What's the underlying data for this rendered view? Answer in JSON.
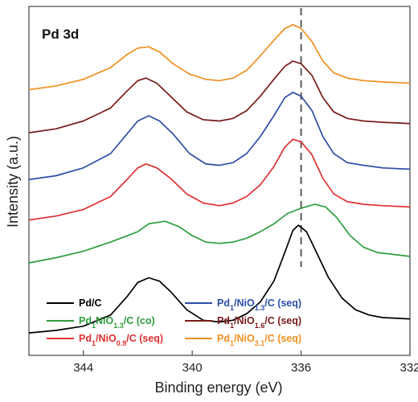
{
  "chart_data": {
    "type": "line",
    "title": "",
    "annotation": "Pd 3d",
    "xlabel": "Binding energy (eV)",
    "ylabel": "Intensity (a.u.)",
    "xlim": [
      346,
      332
    ],
    "x_reversed": true,
    "xticks": [
      344,
      340,
      336,
      332
    ],
    "y_ticks_shown": false,
    "grid": false,
    "legend_placement": "bottom-left",
    "reference_line": {
      "x": 336.0,
      "style": "dashed",
      "color": "#666666"
    },
    "series": [
      {
        "name": "Pd/C",
        "legend_html": "Pd/C",
        "color": "#000000",
        "points": [
          [
            346,
            0.86
          ],
          [
            345,
            0.96
          ],
          [
            344,
            1.12
          ],
          [
            343,
            1.55
          ],
          [
            342.4,
            2.25
          ],
          [
            342,
            2.8
          ],
          [
            341.6,
            2.98
          ],
          [
            341.2,
            2.85
          ],
          [
            340.8,
            2.45
          ],
          [
            340.2,
            1.75
          ],
          [
            339.6,
            1.35
          ],
          [
            339,
            1.28
          ],
          [
            338.5,
            1.35
          ],
          [
            338,
            1.6
          ],
          [
            337.5,
            2.05
          ],
          [
            337,
            2.85
          ],
          [
            336.6,
            3.95
          ],
          [
            336.3,
            4.8
          ],
          [
            336.1,
            5.0
          ],
          [
            335.8,
            4.75
          ],
          [
            335.5,
            4.1
          ],
          [
            335,
            3.0
          ],
          [
            334.5,
            2.2
          ],
          [
            334,
            1.75
          ],
          [
            333.5,
            1.55
          ],
          [
            333,
            1.45
          ],
          [
            332,
            1.4
          ]
        ]
      },
      {
        "name": "Pd1NiO1.3/C (co)",
        "legend_html": "Pd<tspan baseline-shift='sub' font-size='9'>1</tspan>NiO<tspan baseline-shift='sub' font-size='9'>1.3</tspan>/C (co)",
        "color": "#2e9e3e",
        "points": [
          [
            346,
            3.55
          ],
          [
            345,
            3.75
          ],
          [
            344,
            4.0
          ],
          [
            343,
            4.35
          ],
          [
            342,
            4.75
          ],
          [
            341.6,
            5.05
          ],
          [
            341,
            5.15
          ],
          [
            340.5,
            4.95
          ],
          [
            340,
            4.6
          ],
          [
            339.5,
            4.35
          ],
          [
            339,
            4.3
          ],
          [
            338.5,
            4.35
          ],
          [
            338,
            4.5
          ],
          [
            337.5,
            4.75
          ],
          [
            337,
            5.05
          ],
          [
            336.5,
            5.45
          ],
          [
            336,
            5.65
          ],
          [
            335.5,
            5.8
          ],
          [
            335.1,
            5.7
          ],
          [
            334.7,
            5.3
          ],
          [
            334.2,
            4.6
          ],
          [
            333.7,
            4.15
          ],
          [
            333.2,
            3.95
          ],
          [
            332,
            3.8
          ]
        ]
      },
      {
        "name": "Pd1/NiO0.9/C (seq)",
        "legend_html": "Pd<tspan baseline-shift='sub' font-size='9'>1</tspan>/NiO<tspan baseline-shift='sub' font-size='9'>0.9</tspan>/C (seq)",
        "color": "#e03030",
        "points": [
          [
            346,
            5.2
          ],
          [
            345,
            5.35
          ],
          [
            344,
            5.6
          ],
          [
            343,
            6.1
          ],
          [
            342.4,
            6.75
          ],
          [
            342,
            7.2
          ],
          [
            341.7,
            7.35
          ],
          [
            341.3,
            7.2
          ],
          [
            340.8,
            6.8
          ],
          [
            340.2,
            6.2
          ],
          [
            339.6,
            5.85
          ],
          [
            339,
            5.75
          ],
          [
            338.5,
            5.85
          ],
          [
            338,
            6.1
          ],
          [
            337.5,
            6.55
          ],
          [
            337,
            7.25
          ],
          [
            336.6,
            8.0
          ],
          [
            336.3,
            8.3
          ],
          [
            336,
            8.2
          ],
          [
            335.6,
            7.7
          ],
          [
            335.2,
            6.8
          ],
          [
            334.8,
            6.2
          ],
          [
            334.3,
            5.9
          ],
          [
            333.7,
            5.8
          ],
          [
            333,
            5.75
          ],
          [
            332,
            5.7
          ]
        ]
      },
      {
        "name": "Pd1/NiO1.3/C (seq)",
        "legend_html": "Pd<tspan baseline-shift='sub' font-size='9'>1</tspan>/NiO<tspan baseline-shift='sub' font-size='9'>1.3</tspan>/C (seq)",
        "color": "#2c4ea8",
        "points": [
          [
            346,
            6.75
          ],
          [
            345,
            6.9
          ],
          [
            344,
            7.2
          ],
          [
            343,
            7.75
          ],
          [
            342.4,
            8.5
          ],
          [
            342,
            9.0
          ],
          [
            341.6,
            9.2
          ],
          [
            341.2,
            9.0
          ],
          [
            340.7,
            8.5
          ],
          [
            340.1,
            7.75
          ],
          [
            339.5,
            7.35
          ],
          [
            339,
            7.3
          ],
          [
            338.5,
            7.4
          ],
          [
            338,
            7.75
          ],
          [
            337.5,
            8.4
          ],
          [
            337,
            9.2
          ],
          [
            336.6,
            9.9
          ],
          [
            336.3,
            10.1
          ],
          [
            336,
            9.95
          ],
          [
            335.6,
            9.4
          ],
          [
            335.2,
            8.4
          ],
          [
            334.8,
            7.75
          ],
          [
            334.3,
            7.4
          ],
          [
            333.7,
            7.3
          ],
          [
            333,
            7.2
          ],
          [
            332,
            7.15
          ]
        ]
      },
      {
        "name": "Pd1/NiO1.6/C (seq)",
        "legend_html": "Pd<tspan baseline-shift='sub' font-size='9'>1</tspan>/NiO<tspan baseline-shift='sub' font-size='9'>1.6</tspan>/C (seq)",
        "color": "#7a1a1a",
        "points": [
          [
            346,
            8.55
          ],
          [
            345,
            8.7
          ],
          [
            344,
            9.0
          ],
          [
            343,
            9.5
          ],
          [
            342.4,
            10.15
          ],
          [
            342,
            10.55
          ],
          [
            341.7,
            10.65
          ],
          [
            341.3,
            10.45
          ],
          [
            340.8,
            9.95
          ],
          [
            340.2,
            9.35
          ],
          [
            339.6,
            9.05
          ],
          [
            339,
            9.0
          ],
          [
            338.5,
            9.1
          ],
          [
            338,
            9.4
          ],
          [
            337.5,
            9.95
          ],
          [
            337,
            10.6
          ],
          [
            336.6,
            11.1
          ],
          [
            336.3,
            11.3
          ],
          [
            336,
            11.2
          ],
          [
            335.6,
            10.75
          ],
          [
            335.2,
            9.9
          ],
          [
            334.8,
            9.35
          ],
          [
            334.3,
            9.1
          ],
          [
            333.7,
            9.0
          ],
          [
            333,
            8.95
          ],
          [
            332,
            8.9
          ]
        ]
      },
      {
        "name": "Pd1/NiO3.1/C (seq)",
        "legend_html": "Pd<tspan baseline-shift='sub' font-size='9'>1</tspan>/NiO<tspan baseline-shift='sub' font-size='9'>3.1</tspan>/C (seq)",
        "color": "#f09020",
        "points": [
          [
            346,
            10.2
          ],
          [
            345,
            10.35
          ],
          [
            344,
            10.6
          ],
          [
            343,
            11.05
          ],
          [
            342.4,
            11.55
          ],
          [
            342,
            11.8
          ],
          [
            341.6,
            11.85
          ],
          [
            341.2,
            11.65
          ],
          [
            340.7,
            11.2
          ],
          [
            340.1,
            10.8
          ],
          [
            339.5,
            10.6
          ],
          [
            339,
            10.55
          ],
          [
            338.5,
            10.65
          ],
          [
            338,
            10.95
          ],
          [
            337.5,
            11.5
          ],
          [
            337,
            12.1
          ],
          [
            336.6,
            12.55
          ],
          [
            336.3,
            12.7
          ],
          [
            336,
            12.55
          ],
          [
            335.6,
            12.05
          ],
          [
            335.2,
            11.3
          ],
          [
            334.8,
            10.85
          ],
          [
            334.3,
            10.65
          ],
          [
            333.7,
            10.55
          ],
          [
            333,
            10.5
          ],
          [
            332,
            10.45
          ]
        ]
      }
    ]
  }
}
